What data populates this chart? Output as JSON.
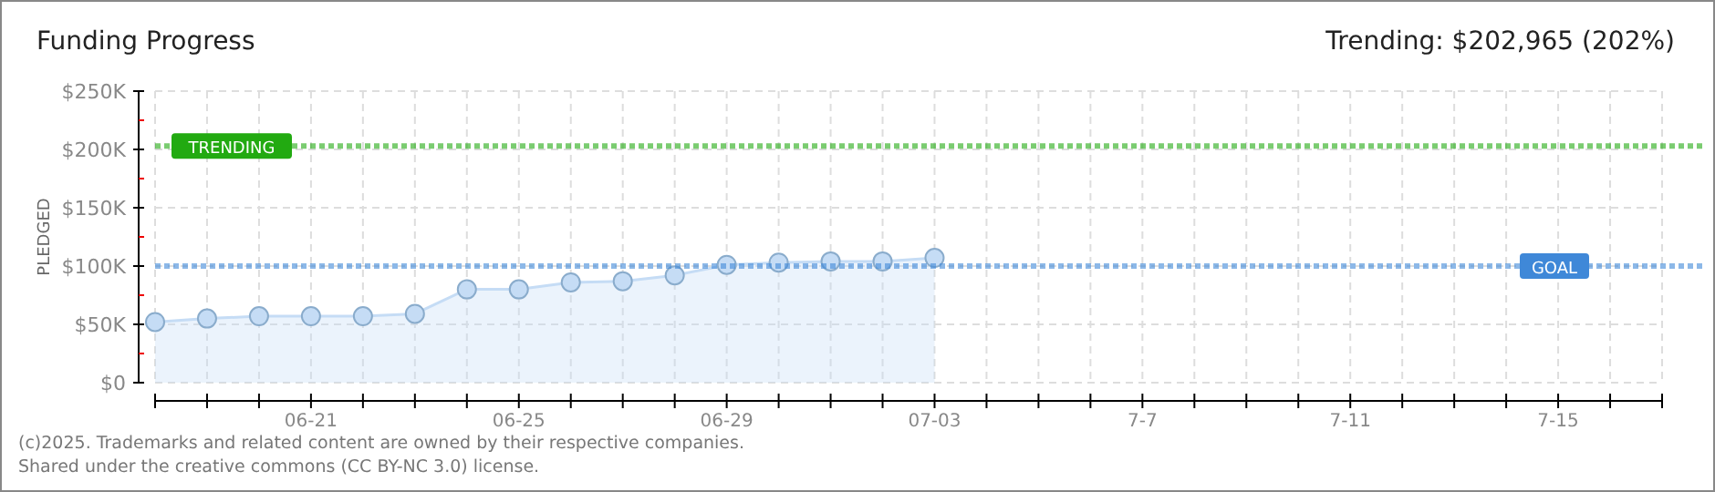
{
  "chart_data": {
    "type": "area",
    "title": "Funding Progress",
    "subtitle": "Trending: $202,965 (202%)",
    "ylabel": "PLEDGED",
    "x": [
      "--06-18",
      "--06-19",
      "--06-20",
      "--06-21",
      "--06-22",
      "--06-23",
      "--06-24",
      "--06-25",
      "--06-26",
      "--06-27",
      "--06-28",
      "--06-29",
      "--06-30",
      "--07-01",
      "--07-02",
      "--07-03"
    ],
    "series": [
      {
        "color": "#c5dcf5",
        "values": [
          52000,
          55000,
          57000,
          57000,
          57000,
          59000,
          80000,
          80000,
          86000,
          87000,
          92000,
          101000,
          103000,
          104000,
          104000,
          107000
        ]
      }
    ],
    "xlim": [
      "--06-18",
      "--07-17"
    ],
    "xticks": [
      {
        "value": "--06-18",
        "label": null
      },
      {
        "value": "--06-19",
        "label": null
      },
      {
        "value": "--06-20",
        "label": null
      },
      {
        "value": "--06-21",
        "label": "06-21"
      },
      {
        "value": "--06-22",
        "label": null
      },
      {
        "value": "--06-23",
        "label": null
      },
      {
        "value": "--06-24",
        "label": null
      },
      {
        "value": "--06-25",
        "label": "06-25"
      },
      {
        "value": "--06-26",
        "label": null
      },
      {
        "value": "--06-27",
        "label": null
      },
      {
        "value": "--06-28",
        "label": null
      },
      {
        "value": "--06-29",
        "label": "06-29"
      },
      {
        "value": "--06-30",
        "label": null
      },
      {
        "value": "--07-01",
        "label": null
      },
      {
        "value": "--07-02",
        "label": null
      },
      {
        "value": "--07-03",
        "label": "07-03"
      },
      {
        "value": "--07-04",
        "label": null
      },
      {
        "value": "--07-05",
        "label": null
      },
      {
        "value": "--07-06",
        "label": null
      },
      {
        "value": "--07-07",
        "label": "7-7"
      },
      {
        "value": "--07-08",
        "label": null
      },
      {
        "value": "--07-09",
        "label": null
      },
      {
        "value": "--07-10",
        "label": null
      },
      {
        "value": "--07-11",
        "label": "7-11"
      },
      {
        "value": "--07-12",
        "label": null
      },
      {
        "value": "--07-13",
        "label": null
      },
      {
        "value": "--07-14",
        "label": null
      },
      {
        "value": "--07-15",
        "label": "7-15"
      },
      {
        "value": "--07-16",
        "label": null
      },
      {
        "value": "--07-17",
        "label": null
      }
    ],
    "ylim": [
      0,
      250000
    ],
    "yticks": [
      {
        "value": 0,
        "label": "$0"
      },
      {
        "value": 25000,
        "label": null
      },
      {
        "value": 50000,
        "label": "$50K"
      },
      {
        "value": 75000,
        "label": null
      },
      {
        "value": 100000,
        "label": "$100K"
      },
      {
        "value": 125000,
        "label": null
      },
      {
        "value": 150000,
        "label": "$150K"
      },
      {
        "value": 175000,
        "label": null
      },
      {
        "value": 200000,
        "label": "$200K"
      },
      {
        "value": 225000,
        "label": null
      },
      {
        "value": 250000,
        "label": "$250K"
      }
    ],
    "grid": true,
    "marker": "circle",
    "ref_lines": [
      {
        "axis": "y",
        "value": 202965,
        "label": "TRENDING",
        "color": "#22aa11"
      },
      {
        "axis": "y",
        "value": 100000,
        "label": "GOAL",
        "color": "#3f88d8"
      }
    ],
    "annotations": [
      "(c)2025. Trademarks and related content are owned by their respective companies.",
      "Shared under the creative commons (CC BY-NC 3.0) license."
    ]
  }
}
